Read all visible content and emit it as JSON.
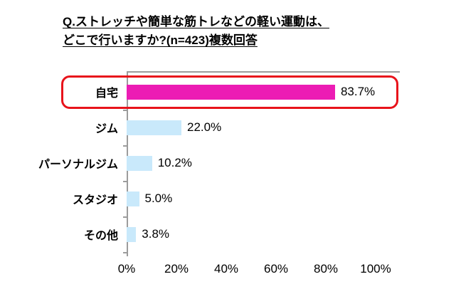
{
  "chart_data": {
    "type": "bar",
    "orientation": "horizontal",
    "title_lines": [
      "Q.ストレッチや簡単な筋トレなどの軽い運動は、",
      "どこで行いますか?(n=423)複数回答"
    ],
    "title": "Q.ストレッチや簡単な筋トレなどの軽い運動は、どこで行いますか?(n=423)複数回答",
    "sample_size_note": "n=423",
    "categories": [
      "自宅",
      "ジム",
      "パーソナルジム",
      "スタジオ",
      "その他"
    ],
    "values": [
      83.7,
      22.0,
      10.2,
      5.0,
      3.8
    ],
    "value_labels": [
      "83.7%",
      "22.0%",
      "10.2%",
      "5.0%",
      "3.8%"
    ],
    "x_tick_values": [
      0,
      20,
      40,
      60,
      80,
      100
    ],
    "x_tick_labels": [
      "0%",
      "20%",
      "40%",
      "60%",
      "80%",
      "100%"
    ],
    "xlim": [
      0,
      100
    ],
    "highlight_index": 0,
    "grid": "off",
    "legend": "none",
    "colors": {
      "highlight_bar": "#ec1cb4",
      "bar": "#c9e9fb",
      "highlight_outline": "#e8131b",
      "axis": "#9c9c9c",
      "text": "#000000",
      "background": "#ffffff"
    }
  }
}
